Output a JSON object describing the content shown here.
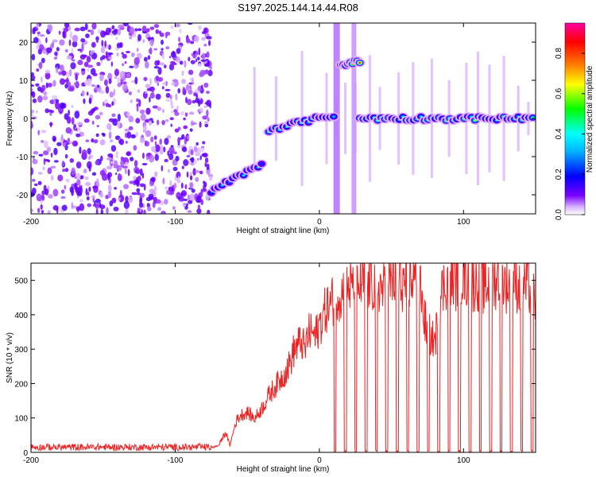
{
  "figure_title": "S197.2025.144.14.44.R08",
  "chart_data": [
    {
      "type": "heatmap",
      "xlabel": "Height of straight line (km)",
      "ylabel": "Frequency (Hz)",
      "xlim": [
        -200,
        150
      ],
      "ylim": [
        -25,
        25
      ],
      "xticks": [
        -200,
        -100,
        0,
        100
      ],
      "yticks": [
        -20,
        -10,
        0,
        10,
        20
      ],
      "colorbar": {
        "label": "Normalized spectral amplitude",
        "range": [
          0.0,
          0.95
        ],
        "ticks": [
          "0.0",
          "0.2",
          "0.4",
          "0.6",
          "0.8"
        ],
        "tick_values": [
          0.0,
          0.2,
          0.4,
          0.6,
          0.8
        ],
        "colors": [
          "#ffffff",
          "#7a00ff",
          "#0000ff",
          "#00ffff",
          "#00ff00",
          "#ffff00",
          "#ff8000",
          "#ff0000",
          "#ff00a0"
        ]
      },
      "noise_region": {
        "x": [
          -200,
          -75
        ],
        "y": [
          -25,
          25
        ],
        "level": 0.08
      },
      "features": [
        {
          "x": [
            -75,
            -40
          ],
          "y": [
            -19,
            -12
          ],
          "level": 0.4
        },
        {
          "x": [
            -35,
            10
          ],
          "y": [
            -3,
            1
          ],
          "level": 0.5
        },
        {
          "x": [
            15,
            28
          ],
          "y": [
            14,
            15
          ],
          "level": 0.9
        },
        {
          "x": [
            28,
            148
          ],
          "y": [
            0,
            0
          ],
          "level": 0.6
        }
      ]
    },
    {
      "type": "line",
      "xlabel": "Height of straight line (km)",
      "ylabel": "SNR (10 * v/v)",
      "xlim": [
        -200,
        150
      ],
      "ylim": [
        0,
        550
      ],
      "xticks": [
        -200,
        -100,
        0,
        100
      ],
      "yticks": [
        0,
        100,
        200,
        300,
        400,
        500
      ],
      "series": [
        {
          "color": "#ee2222",
          "x": [
            -200,
            -190,
            -180,
            -170,
            -160,
            -150,
            -140,
            -130,
            -120,
            -110,
            -100,
            -90,
            -80,
            -75,
            -70,
            -65,
            -62,
            -58,
            -55,
            -50,
            -45,
            -40,
            -35,
            -30,
            -25,
            -22,
            -20,
            -18,
            -15,
            -12,
            -10,
            -8,
            -5,
            -3,
            0,
            3,
            5,
            8,
            10,
            12,
            15,
            18,
            20,
            22,
            25,
            30,
            35,
            40,
            45,
            50,
            55,
            60,
            65,
            70,
            72,
            75,
            78,
            80,
            85,
            88,
            90,
            92,
            95,
            100,
            105,
            110,
            115,
            120,
            125,
            130,
            135,
            140,
            145,
            148
          ],
          "y": [
            15,
            12,
            18,
            10,
            14,
            16,
            12,
            15,
            11,
            14,
            12,
            13,
            10,
            14,
            20,
            60,
            20,
            90,
            110,
            120,
            100,
            130,
            170,
            200,
            230,
            250,
            270,
            300,
            320,
            330,
            300,
            350,
            360,
            340,
            380,
            410,
            430,
            440,
            460,
            480,
            470,
            490,
            500,
            490,
            480,
            510,
            500,
            505,
            480,
            520,
            510,
            500,
            520,
            490,
            420,
            360,
            340,
            330,
            480,
            510,
            540,
            520,
            510,
            530,
            500,
            510,
            490,
            510,
            520,
            500,
            510,
            490,
            500,
            470
          ]
        }
      ]
    }
  ]
}
